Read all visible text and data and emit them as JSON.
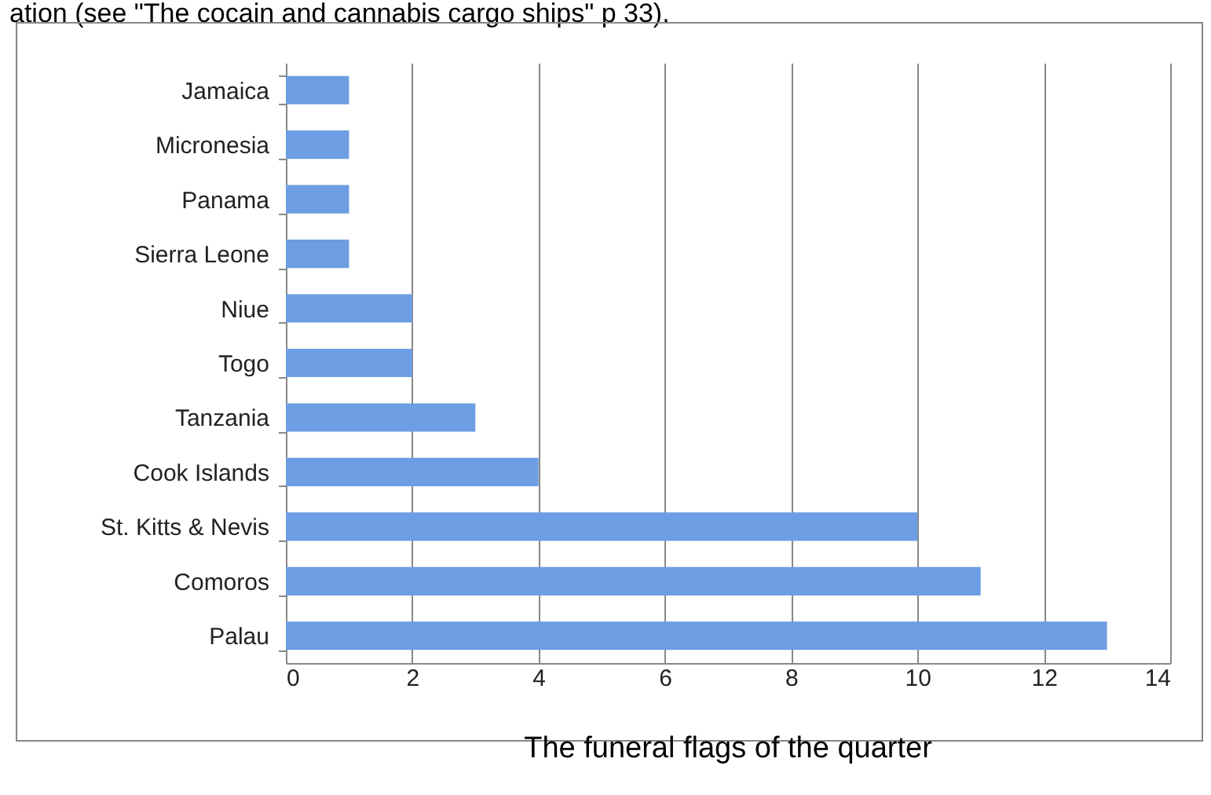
{
  "chart_data": {
    "type": "bar",
    "orientation": "horizontal",
    "title": "The funeral flags of the quarter",
    "annotations": [
      "ation (see \"The cocain and cannabis cargo ships\" p 33)."
    ],
    "categories": [
      "Jamaica",
      "Micronesia",
      "Panama",
      "Sierra Leone",
      "Niue",
      "Togo",
      "Tanzania",
      "Cook Islands",
      "St. Kitts & Nevis",
      "Comoros",
      "Palau"
    ],
    "values": [
      1,
      1,
      1,
      1,
      2,
      2,
      3,
      4,
      10,
      11,
      13
    ],
    "color": "#6d9de2",
    "xlim": [
      0,
      14
    ],
    "xticks": [
      0,
      2,
      4,
      6,
      8,
      10,
      12,
      14
    ],
    "grid": "x"
  }
}
